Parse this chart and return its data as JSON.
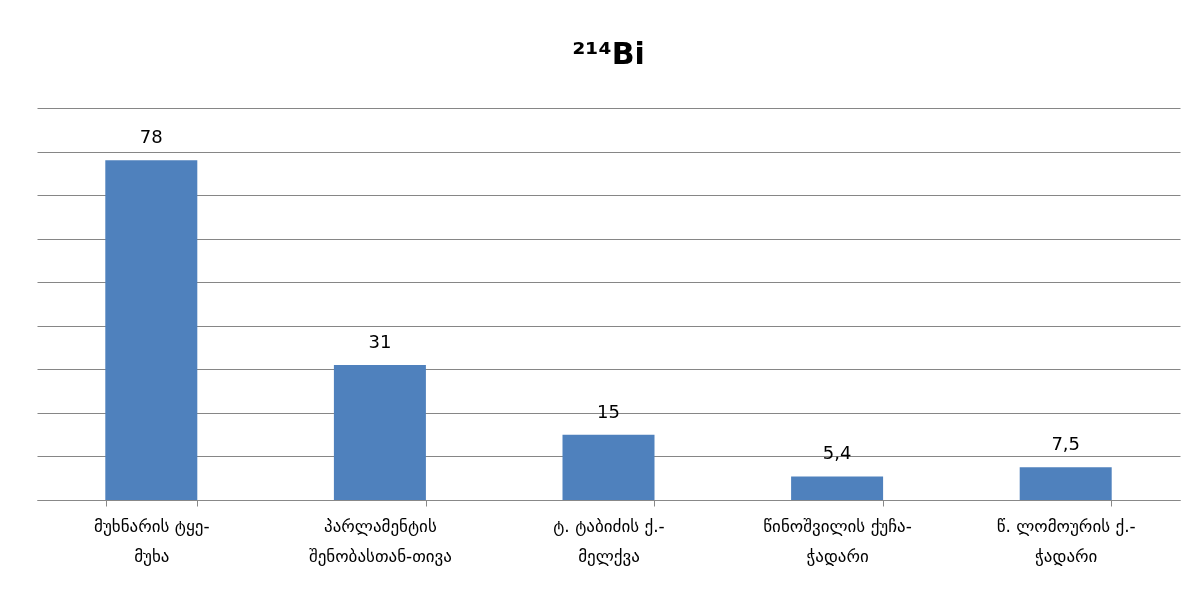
{
  "chart_data": {
    "type": "bar",
    "title": "²¹⁴Bi",
    "categories": [
      "მუხნარის ტყე-მუხა",
      "პარლამენტის შენობასთან-თივა",
      "ტ. ტაბიძის ქ.-მელქვა",
      "წინოშვილის ქუჩა-ჭადარი",
      "წ. ლომოურის ქ.-ჭადარი"
    ],
    "values": [
      78,
      31,
      15,
      5.4,
      7.5
    ],
    "value_labels": [
      "78",
      "31",
      "15",
      "5,4",
      "7,5"
    ],
    "color": "#4f81bd",
    "ylim": [
      0,
      90
    ],
    "yticks": [
      {
        "value": 0,
        "label": null
      },
      {
        "value": 10,
        "label": null
      },
      {
        "value": 20,
        "label": null
      },
      {
        "value": 30,
        "label": null
      },
      {
        "value": 40,
        "label": null
      },
      {
        "value": 50,
        "label": null
      },
      {
        "value": 60,
        "label": null
      },
      {
        "value": 70,
        "label": null
      },
      {
        "value": 80,
        "label": null
      },
      {
        "value": 90,
        "label": null
      }
    ],
    "tick_labels": "x",
    "grid": "y"
  }
}
